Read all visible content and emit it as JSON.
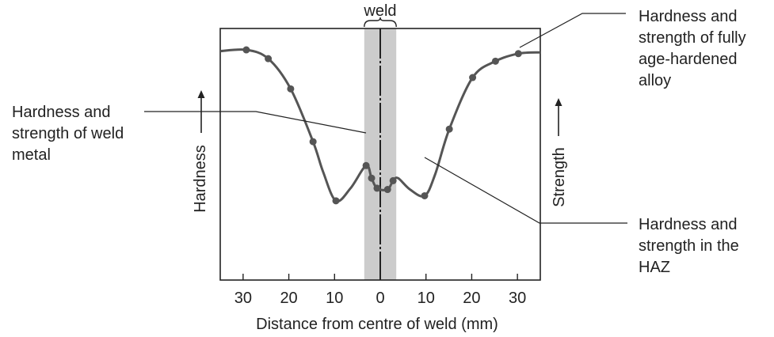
{
  "chart_data": {
    "type": "line",
    "title": "",
    "xlabel": "Distance from centre of weld (mm)",
    "ylabel_left": "Hardness",
    "ylabel_right": "Strength",
    "xlim": [
      -35,
      35
    ],
    "ylim": [
      0,
      1
    ],
    "x_ticks": [
      -30,
      -20,
      -10,
      0,
      10,
      20,
      30
    ],
    "x_tick_labels": [
      "30",
      "20",
      "10",
      "0",
      "10",
      "20",
      "30"
    ],
    "y_ticks": [],
    "grid": false,
    "weld_zone": {
      "label": "weld",
      "x_range": [
        -3.5,
        3.5
      ]
    },
    "series": [
      {
        "points": [
          {
            "x": -29.3,
            "y": 0.915
          },
          {
            "x": -24.5,
            "y": 0.88
          },
          {
            "x": -19.6,
            "y": 0.76
          },
          {
            "x": -14.7,
            "y": 0.55
          },
          {
            "x": -9.7,
            "y": 0.315
          },
          {
            "x": -3.1,
            "y": 0.455
          },
          {
            "x": -1.9,
            "y": 0.405
          },
          {
            "x": -0.7,
            "y": 0.365
          },
          {
            "x": 1.6,
            "y": 0.36
          },
          {
            "x": 2.8,
            "y": 0.395
          },
          {
            "x": 9.7,
            "y": 0.335
          },
          {
            "x": 15.1,
            "y": 0.6
          },
          {
            "x": 20.2,
            "y": 0.805
          },
          {
            "x": 25.2,
            "y": 0.87
          },
          {
            "x": 30.2,
            "y": 0.9
          }
        ],
        "curve": [
          {
            "x": -35,
            "y": 0.91
          },
          {
            "x": -29.3,
            "y": 0.915
          },
          {
            "x": -24.5,
            "y": 0.88
          },
          {
            "x": -19.6,
            "y": 0.76
          },
          {
            "x": -14.7,
            "y": 0.55
          },
          {
            "x": -12.5,
            "y": 0.43
          },
          {
            "x": -9.7,
            "y": 0.315
          },
          {
            "x": -6.5,
            "y": 0.365
          },
          {
            "x": -3.1,
            "y": 0.455
          },
          {
            "x": -1.9,
            "y": 0.405
          },
          {
            "x": -0.7,
            "y": 0.365
          },
          {
            "x": 1.6,
            "y": 0.36
          },
          {
            "x": 2.8,
            "y": 0.395
          },
          {
            "x": 3.9,
            "y": 0.405
          },
          {
            "x": 6.5,
            "y": 0.36
          },
          {
            "x": 9.7,
            "y": 0.335
          },
          {
            "x": 12.0,
            "y": 0.42
          },
          {
            "x": 15.1,
            "y": 0.6
          },
          {
            "x": 20.2,
            "y": 0.805
          },
          {
            "x": 25.2,
            "y": 0.87
          },
          {
            "x": 30.2,
            "y": 0.9
          },
          {
            "x": 35,
            "y": 0.905
          }
        ]
      }
    ],
    "annotations": [
      {
        "id": "fully-aged",
        "lines": [
          "Hardness and",
          "strength of fully",
          "age-hardened",
          "alloy"
        ]
      },
      {
        "id": "weld-metal",
        "lines": [
          "Hardness and",
          "strength of weld",
          "metal"
        ]
      },
      {
        "id": "haz",
        "lines": [
          "Hardness and",
          "strength in the",
          "HAZ"
        ]
      }
    ],
    "colors": {
      "curve": "#555555",
      "weld_band": "#cccccc",
      "axes": "#222222"
    }
  }
}
